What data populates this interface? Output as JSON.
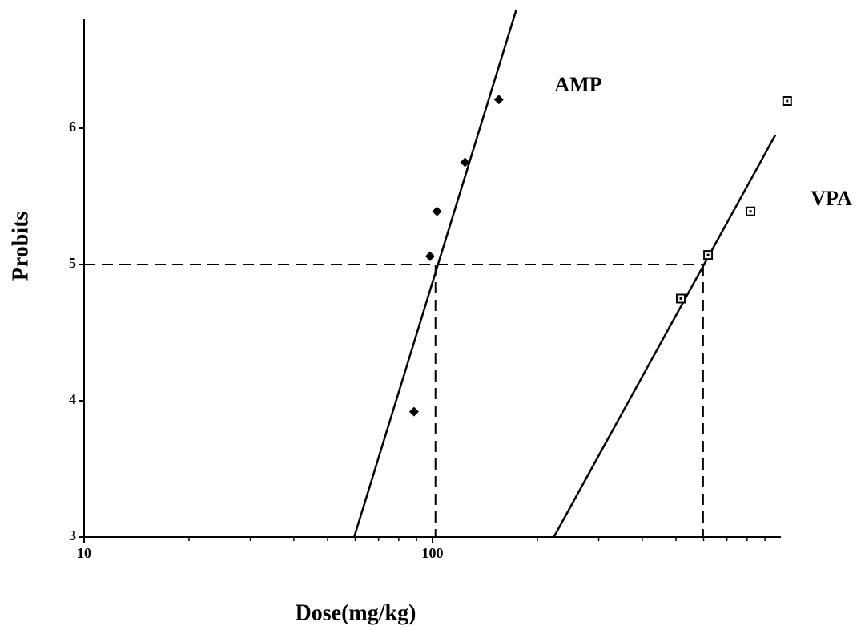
{
  "chart_data": {
    "type": "scatter",
    "x_label": "Dose(mg/kg)",
    "y_label": "Probits",
    "xscale": "log",
    "xlim": [
      10,
      1000
    ],
    "xticks": [
      10,
      100
    ],
    "xminorticks": [
      20,
      30,
      40,
      50,
      60,
      70,
      80,
      90,
      200,
      300,
      400,
      500,
      600,
      700,
      800,
      900
    ],
    "ylim": [
      3,
      6.8
    ],
    "yticks": [
      3,
      4,
      5,
      6
    ],
    "series": [
      {
        "name": "AMP",
        "color": "#000000",
        "marker": "diamond",
        "x": [
          88.5,
          98.4,
          103,
          124,
          155
        ],
        "values": [
          3.92,
          5.06,
          5.39,
          5.75,
          6.21
        ],
        "fit": {
          "x": [
            59.6,
            174
          ],
          "values": [
            3,
            6.87
          ]
        }
      },
      {
        "name": "VPA",
        "color": "#000000",
        "marker": "square",
        "x": [
          516,
          618,
          818,
          1042
        ],
        "values": [
          4.75,
          5.07,
          5.39,
          6.2
        ],
        "fit": {
          "x": [
            223,
            964
          ],
          "values": [
            3,
            5.95
          ]
        }
      }
    ],
    "reference": {
      "y": 5,
      "x": [
        102,
        598
      ]
    }
  }
}
